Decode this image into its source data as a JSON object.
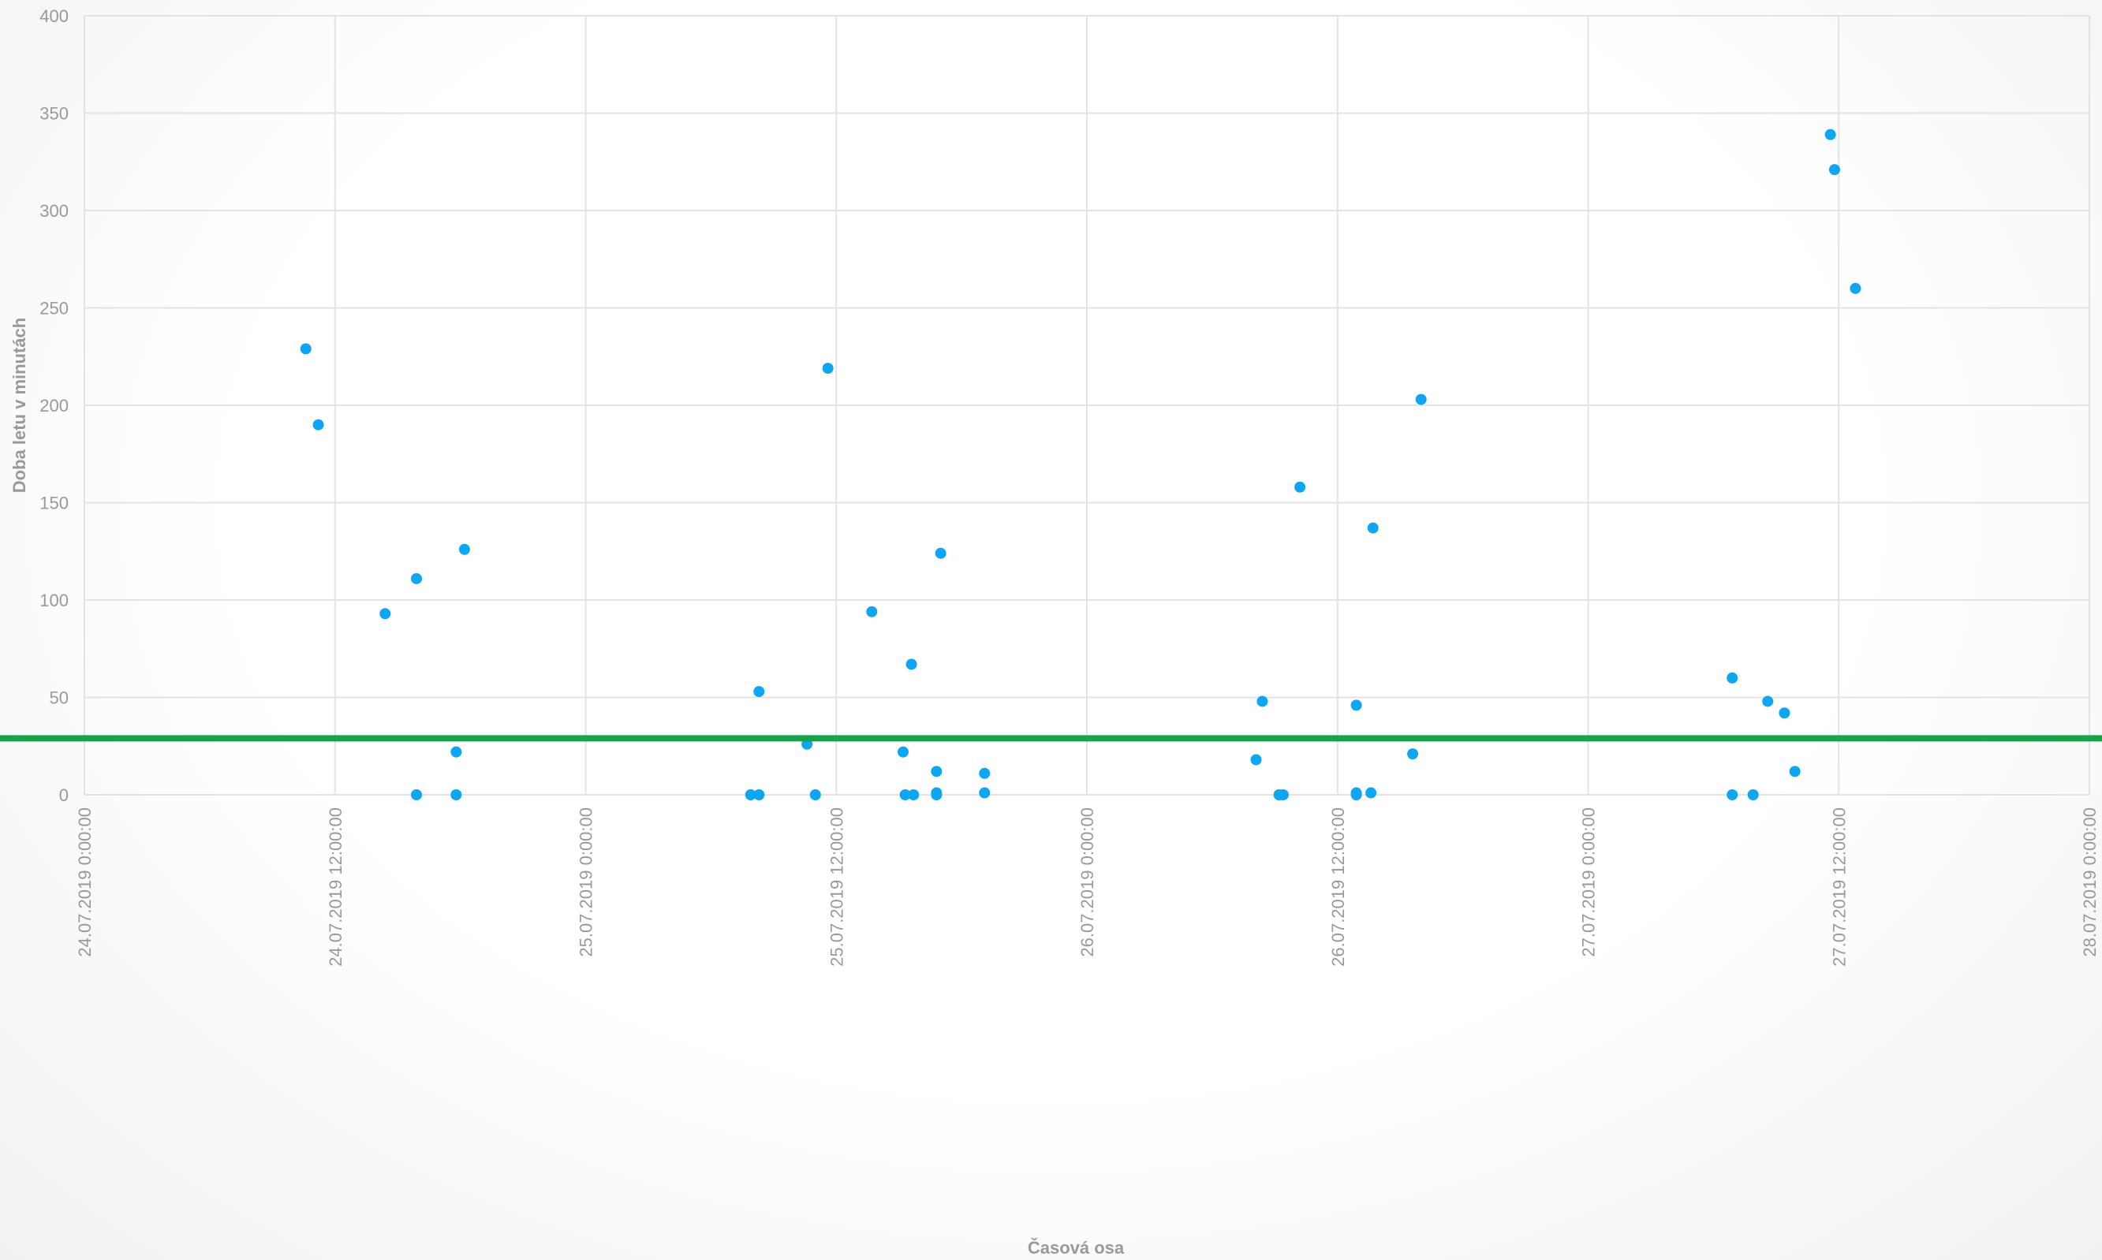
{
  "chart_data": {
    "type": "scatter",
    "x_label": "Časová osa",
    "y_label": "Doba letu v minutách",
    "color": "#0ea5f2",
    "x": [
      10.6,
      11.2,
      14.4,
      15.9,
      15.9,
      17.8,
      17.8,
      18.2,
      31.9,
      32.3,
      32.3,
      34.6,
      35.0,
      35.6,
      37.7,
      39.2,
      39.3,
      39.7,
      39.6,
      40.8,
      40.8,
      40.8,
      41.0,
      43.1,
      43.1,
      56.1,
      56.4,
      57.2,
      57.4,
      58.2,
      60.9,
      60.9,
      60.9,
      61.6,
      61.7,
      63.6,
      64.0,
      78.9,
      78.9,
      79.9,
      80.6,
      81.4,
      81.9,
      83.6,
      83.8,
      84.8
    ],
    "values": [
      229,
      190,
      93,
      111,
      0,
      22,
      0,
      126,
      0,
      0,
      53,
      26,
      0,
      219,
      94,
      22,
      0,
      0,
      67,
      12,
      1,
      0,
      124,
      11,
      1,
      18,
      48,
      0,
      0,
      158,
      46,
      1,
      0,
      1,
      137,
      21,
      203,
      60,
      0,
      0,
      48,
      42,
      12,
      339,
      321,
      260
    ],
    "xlim": [
      0,
      96
    ],
    "xticks": [
      {
        "value": 0,
        "label": "24.07.2019 0:00:00"
      },
      {
        "value": 12,
        "label": "24.07.2019 12:00:00"
      },
      {
        "value": 24,
        "label": "25.07.2019 0:00:00"
      },
      {
        "value": 36,
        "label": "25.07.2019 12:00:00"
      },
      {
        "value": 48,
        "label": "26.07.2019 0:00:00"
      },
      {
        "value": 60,
        "label": "26.07.2019 12:00:00"
      },
      {
        "value": 72,
        "label": "27.07.2019 0:00:00"
      },
      {
        "value": 84,
        "label": "27.07.2019 12:00:00"
      },
      {
        "value": 96,
        "label": "28.07.2019 0:00:00"
      }
    ],
    "ylim": [
      0,
      400
    ],
    "yticks": [
      0,
      50,
      100,
      150,
      200,
      250,
      300,
      350,
      400
    ],
    "grid": true,
    "reference_line": {
      "value": 29,
      "color": "#16a34a"
    }
  }
}
